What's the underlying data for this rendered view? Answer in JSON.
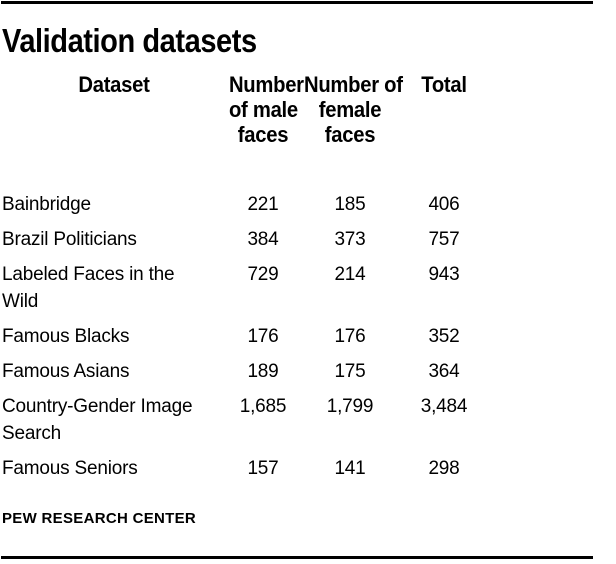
{
  "title": "Validation datasets",
  "colors": {
    "text": "#000000",
    "rule": "#000000",
    "background": "#ffffff"
  },
  "table": {
    "columns": [
      {
        "label": "Dataset",
        "lines": [
          "Dataset"
        ]
      },
      {
        "label": "Number of male faces",
        "lines": [
          "Number",
          "of male",
          "faces"
        ]
      },
      {
        "label": "Number of female faces",
        "lines": [
          "Number of",
          "female",
          "faces"
        ]
      },
      {
        "label": "Total",
        "lines": [
          "Total"
        ]
      }
    ],
    "rows": [
      {
        "dataset": "Bainbridge",
        "male": "221",
        "female": "185",
        "total": "406"
      },
      {
        "dataset": "Brazil Politicians",
        "male": "384",
        "female": "373",
        "total": "757"
      },
      {
        "dataset": "Labeled Faces in the Wild",
        "male": "729",
        "female": "214",
        "total": "943"
      },
      {
        "dataset": "Famous Blacks",
        "male": "176",
        "female": "176",
        "total": "352"
      },
      {
        "dataset": "Famous Asians",
        "male": "189",
        "female": "175",
        "total": "364"
      },
      {
        "dataset": "Country-Gender Image Search",
        "male": "1,685",
        "female": "1,799",
        "total": "3,484"
      },
      {
        "dataset": "Famous Seniors",
        "male": "157",
        "female": "141",
        "total": "298"
      }
    ]
  },
  "footer": {
    "source": "PEW RESEARCH CENTER"
  },
  "chart_data": {
    "type": "table",
    "title": "Validation datasets",
    "columns": [
      "Dataset",
      "Number of male faces",
      "Number of female faces",
      "Total"
    ],
    "rows": [
      [
        "Bainbridge",
        221,
        185,
        406
      ],
      [
        "Brazil Politicians",
        384,
        373,
        757
      ],
      [
        "Labeled Faces in the Wild",
        729,
        214,
        943
      ],
      [
        "Famous Blacks",
        176,
        176,
        352
      ],
      [
        "Famous Asians",
        189,
        175,
        364
      ],
      [
        "Country-Gender Image Search",
        1685,
        1799,
        3484
      ],
      [
        "Famous Seniors",
        157,
        141,
        298
      ]
    ],
    "source": "PEW RESEARCH CENTER"
  }
}
